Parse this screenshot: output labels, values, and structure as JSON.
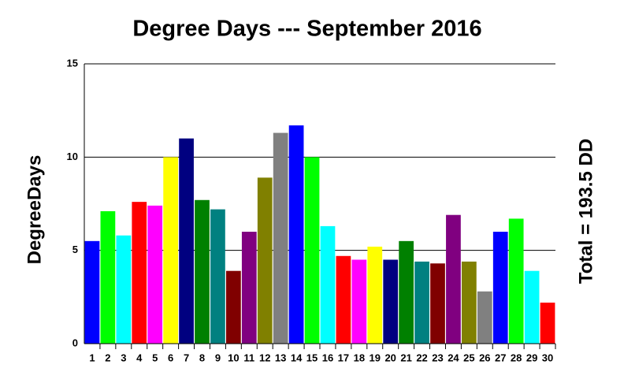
{
  "chart_data": {
    "type": "bar",
    "title": "Degree Days --- September 2016",
    "y_label": "DegreeDays",
    "annotation": "Total = 193.5 DD",
    "categories": [
      "1",
      "2",
      "3",
      "4",
      "5",
      "6",
      "7",
      "8",
      "9",
      "10",
      "11",
      "12",
      "13",
      "14",
      "15",
      "16",
      "17",
      "18",
      "19",
      "20",
      "21",
      "22",
      "23",
      "24",
      "25",
      "26",
      "27",
      "28",
      "29",
      "30"
    ],
    "values": [
      5.5,
      7.1,
      5.8,
      7.6,
      7.4,
      10.0,
      11.0,
      7.7,
      7.2,
      3.9,
      6.0,
      8.9,
      11.3,
      11.7,
      10.0,
      6.3,
      4.7,
      4.5,
      5.2,
      4.5,
      5.5,
      4.4,
      4.3,
      6.9,
      4.4,
      2.8,
      6.0,
      6.7,
      3.9,
      2.2
    ],
    "colors": [
      "#0000ff",
      "#00ff00",
      "#00ffff",
      "#ff0000",
      "#ff00ff",
      "#ffff00",
      "#000080",
      "#008000",
      "#008080",
      "#800000",
      "#800080",
      "#808000",
      "#808080",
      "#0000ff",
      "#00ff00",
      "#00ffff",
      "#ff0000",
      "#ff00ff",
      "#ffff00",
      "#000080",
      "#008000",
      "#008080",
      "#800000",
      "#800080",
      "#808000",
      "#808080",
      "#0000ff",
      "#00ff00",
      "#00ffff",
      "#ff0000"
    ],
    "ylim": [
      0,
      15
    ],
    "yticks": [
      0,
      5,
      10,
      15
    ],
    "grid": true
  }
}
